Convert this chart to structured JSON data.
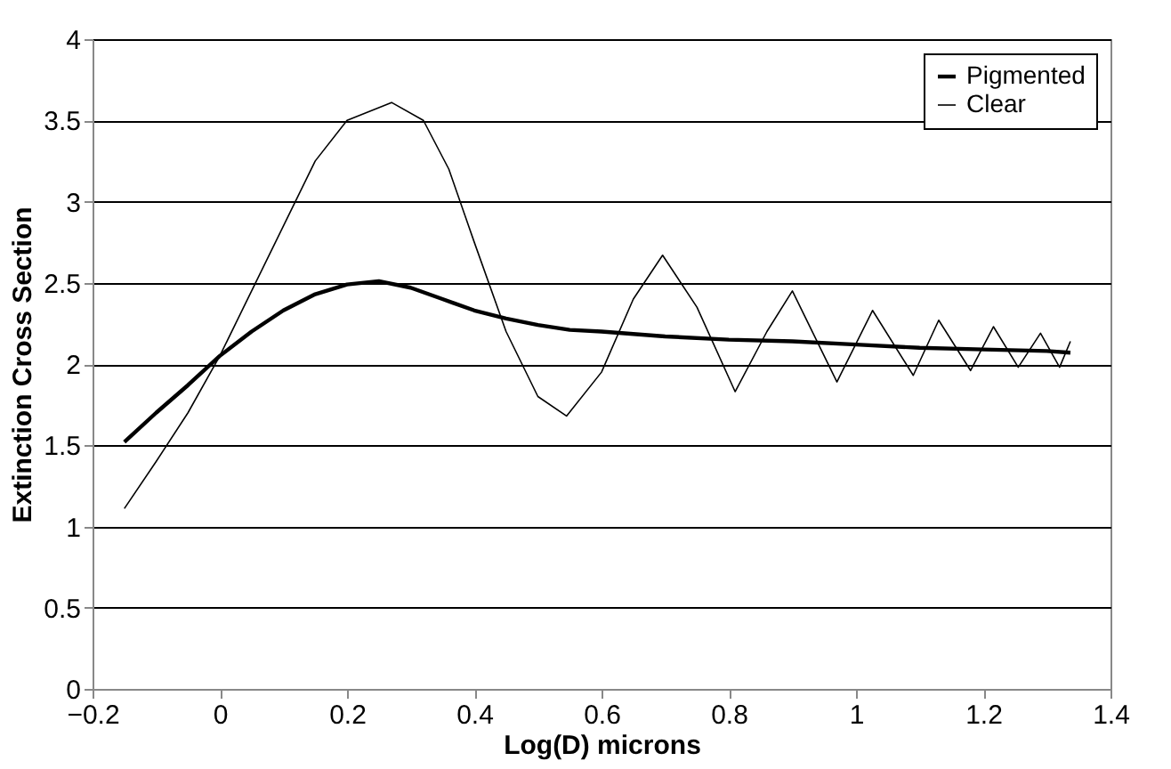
{
  "chart_data": {
    "type": "line",
    "xlabel": "Log(D) microns",
    "ylabel": "Extinction Cross Section",
    "xlim": [
      -0.2,
      1.4
    ],
    "xticks": [
      -0.2,
      0,
      0.2,
      0.4,
      0.6,
      0.8,
      1,
      1.2,
      1.4
    ],
    "ylim": [
      0,
      4
    ],
    "yticks": [
      0,
      0.5,
      1,
      1.5,
      2,
      2.5,
      3,
      3.5,
      4
    ],
    "grid": "y",
    "legend": "top right",
    "line_style": "solid",
    "marker": "none",
    "series": [
      {
        "name": "Pigmented",
        "color": "#000000",
        "x": [
          -0.15,
          -0.1,
          -0.05,
          0,
          0.05,
          0.1,
          0.15,
          0.2,
          0.25,
          0.3,
          0.35,
          0.4,
          0.45,
          0.5,
          0.55,
          0.6,
          0.7,
          0.8,
          0.9,
          1.0,
          1.1,
          1.2,
          1.3,
          1.337
        ],
        "values": [
          1.52,
          1.7,
          1.87,
          2.05,
          2.2,
          2.33,
          2.43,
          2.49,
          2.51,
          2.47,
          2.4,
          2.33,
          2.28,
          2.24,
          2.21,
          2.2,
          2.17,
          2.15,
          2.14,
          2.12,
          2.1,
          2.09,
          2.08,
          2.07
        ]
      },
      {
        "name": "Clear",
        "color": "#000000",
        "x": [
          -0.15,
          -0.1,
          -0.05,
          0,
          0.05,
          0.1,
          0.15,
          0.2,
          0.27,
          0.32,
          0.36,
          0.4,
          0.45,
          0.5,
          0.545,
          0.6,
          0.65,
          0.696,
          0.75,
          0.81,
          0.86,
          0.9,
          0.97,
          1.026,
          1.09,
          1.13,
          1.18,
          1.216,
          1.255,
          1.29,
          1.32,
          1.337
        ],
        "values": [
          1.11,
          1.4,
          1.7,
          2.05,
          2.45,
          2.85,
          3.25,
          3.5,
          3.61,
          3.5,
          3.2,
          2.75,
          2.2,
          1.8,
          1.68,
          1.95,
          2.4,
          2.67,
          2.35,
          1.83,
          2.2,
          2.45,
          1.89,
          2.33,
          1.93,
          2.27,
          1.96,
          2.23,
          1.98,
          2.19,
          1.98,
          2.14
        ]
      }
    ]
  }
}
